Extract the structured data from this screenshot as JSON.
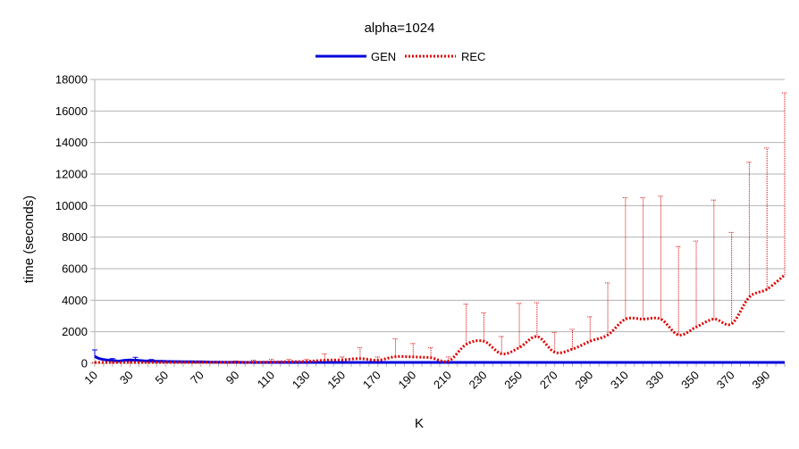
{
  "chart_data": {
    "type": "line",
    "title": "alpha=1024",
    "xlabel": "K",
    "ylabel": "time (seconds)",
    "ylim": [
      0,
      18000
    ],
    "yticks": [
      "0",
      "2000",
      "4000",
      "6000",
      "8000",
      "10000",
      "12000",
      "14000",
      "16000",
      "18000"
    ],
    "xlim": [
      10,
      400
    ],
    "xticks": [
      "10",
      "30",
      "50",
      "70",
      "90",
      "110",
      "130",
      "150",
      "170",
      "190",
      "210",
      "230",
      "250",
      "270",
      "290",
      "310",
      "330",
      "350",
      "370",
      "390"
    ],
    "grid": "horizontal",
    "legend": "top-center",
    "series": [
      {
        "name": "GEN",
        "color": "#0000dd",
        "style": "solid",
        "x": [
          10,
          11,
          12,
          14,
          16,
          18,
          20,
          22,
          24,
          26,
          28,
          30,
          32,
          34,
          36,
          38,
          40,
          42,
          45,
          50,
          55,
          60,
          65,
          70,
          75,
          80,
          90,
          100,
          120,
          150,
          200,
          250,
          300,
          350,
          400
        ],
        "y": [
          450,
          380,
          320,
          260,
          220,
          200,
          180,
          160,
          140,
          180,
          200,
          210,
          200,
          190,
          170,
          160,
          150,
          140,
          130,
          120,
          110,
          100,
          95,
          90,
          80,
          70,
          60,
          55,
          45,
          40,
          35,
          30,
          30,
          30,
          30
        ],
        "error_x": [
          10,
          20,
          33,
          42
        ],
        "error_high": [
          850,
          300,
          380,
          240
        ]
      },
      {
        "name": "REC",
        "color": "#dd0000",
        "style": "dotted",
        "x": [
          10,
          20,
          30,
          40,
          50,
          60,
          70,
          80,
          90,
          100,
          110,
          120,
          130,
          140,
          150,
          160,
          170,
          180,
          190,
          200,
          210,
          220,
          230,
          240,
          250,
          260,
          270,
          280,
          290,
          300,
          310,
          320,
          330,
          340,
          350,
          360,
          370,
          380,
          390,
          400
        ],
        "y": [
          20,
          20,
          30,
          30,
          40,
          40,
          40,
          50,
          60,
          60,
          80,
          100,
          120,
          200,
          220,
          300,
          200,
          420,
          400,
          350,
          150,
          1200,
          1400,
          600,
          1000,
          1700,
          700,
          900,
          1400,
          1800,
          2800,
          2800,
          2800,
          1800,
          2300,
          2800,
          2500,
          4200,
          4700,
          5600
        ],
        "error_high": [
          50,
          60,
          80,
          100,
          120,
          100,
          150,
          100,
          150,
          200,
          250,
          250,
          250,
          600,
          400,
          1000,
          400,
          1550,
          1250,
          1000,
          400,
          3750,
          3200,
          1700,
          3800,
          3850,
          1950,
          2150,
          2950,
          5100,
          10500,
          10500,
          10600,
          7400,
          7750,
          10350,
          8300,
          12750,
          13650,
          17150
        ]
      }
    ]
  }
}
